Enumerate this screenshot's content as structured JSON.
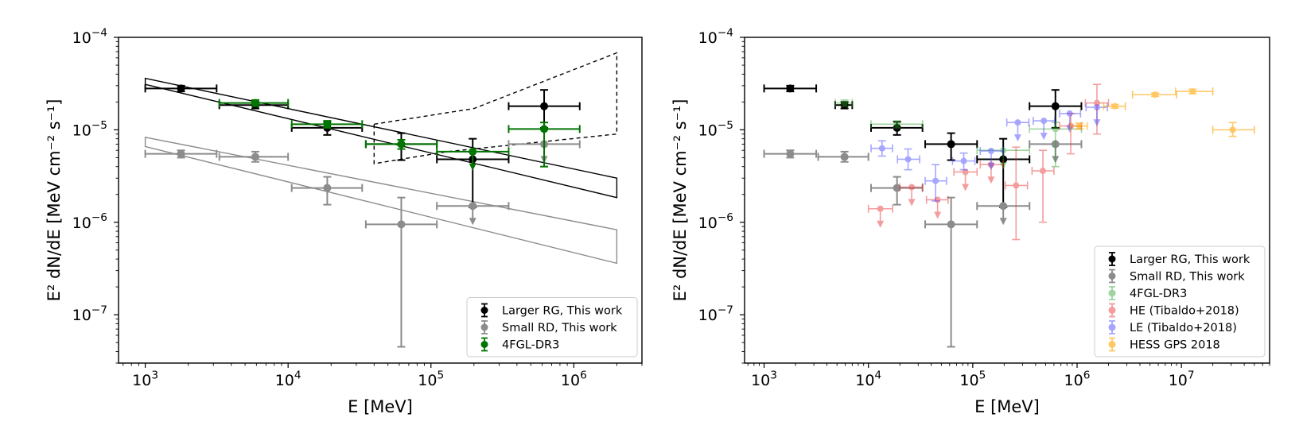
{
  "chart_data": [
    {
      "type": "scatter",
      "xscale": "log",
      "yscale": "log",
      "xlim": [
        650,
        3000000
      ],
      "ylim": [
        3e-08,
        0.0001
      ],
      "xlabel": "E [MeV]",
      "ylabel": "E² dN/dE [MeV cm⁻² s⁻¹]",
      "x_ticks": [
        "10^3",
        "10^4",
        "10^5",
        "10^6"
      ],
      "y_ticks": [
        "10^-4",
        "10^-5",
        "10^-6",
        "10^-7"
      ],
      "legend": {
        "placement": "lower-right",
        "entries": [
          {
            "label": "Larger RG, This work",
            "color": "#000000"
          },
          {
            "label": "Small RD, This work",
            "color": "#8c8c8c"
          },
          {
            "label": "4FGL-DR3",
            "color": "#007500"
          }
        ]
      },
      "series": [
        {
          "name": "Larger RG, This work",
          "color": "#000000",
          "alpha": 1,
          "points": [
            {
              "x": 1780,
              "y": 2.8e-05,
              "xlo": 1000,
              "xhi": 3160,
              "ylo": 2.6e-05,
              "yhi": 3e-05
            },
            {
              "x": 5900,
              "y": 1.85e-05,
              "xlo": 3300,
              "xhi": 10000,
              "ylo": 1.7e-05,
              "yhi": 2e-05
            },
            {
              "x": 18800,
              "y": 1.05e-05,
              "xlo": 10600,
              "xhi": 33000,
              "ylo": 8.8e-06,
              "yhi": 1.22e-05
            },
            {
              "x": 62000,
              "y": 7e-06,
              "xlo": 35000,
              "xhi": 110000,
              "ylo": 4.7e-06,
              "yhi": 9.2e-06
            },
            {
              "x": 196000,
              "y": 4.8e-06,
              "xlo": 110000,
              "xhi": 350000,
              "ylo": 1.45e-06,
              "yhi": 8e-06
            },
            {
              "x": 620000,
              "y": 1.8e-05,
              "xlo": 350000,
              "xhi": 1100000,
              "ylo": 1.05e-05,
              "yhi": 2.7e-05
            }
          ]
        },
        {
          "name": "Small RD, This work",
          "color": "#8c8c8c",
          "alpha": 1,
          "points": [
            {
              "x": 1780,
              "y": 5.5e-06,
              "xlo": 1000,
              "xhi": 3160,
              "ylo": 5e-06,
              "yhi": 6e-06
            },
            {
              "x": 5900,
              "y": 5.1e-06,
              "xlo": 3300,
              "xhi": 10000,
              "ylo": 4.5e-06,
              "yhi": 5.8e-06
            },
            {
              "x": 18800,
              "y": 2.35e-06,
              "xlo": 10600,
              "xhi": 33000,
              "ylo": 1.55e-06,
              "yhi": 3.1e-06
            },
            {
              "x": 62000,
              "y": 9.5e-07,
              "xlo": 35000,
              "xhi": 110000,
              "ylo": 4.5e-08,
              "yhi": 1.85e-06
            },
            {
              "x": 196000,
              "y": 1.5e-06,
              "xlo": 110000,
              "xhi": 350000,
              "ul": true
            },
            {
              "x": 620000,
              "y": 7e-06,
              "xlo": 350000,
              "xhi": 1100000,
              "ul": true
            }
          ]
        },
        {
          "name": "4FGL-DR3",
          "color": "#007500",
          "alpha": 1,
          "points": [
            {
              "x": 5900,
              "y": 1.95e-05,
              "xlo": 3300,
              "xhi": 10000,
              "ylo": 1.8e-05,
              "yhi": 2.1e-05
            },
            {
              "x": 18800,
              "y": 1.15e-05,
              "xlo": 10600,
              "xhi": 33000,
              "ylo": 1.05e-05,
              "yhi": 1.25e-05
            },
            {
              "x": 62000,
              "y": 7e-06,
              "xlo": 35000,
              "xhi": 110000,
              "ylo": 6.2e-06,
              "yhi": 7.8e-06
            },
            {
              "x": 196000,
              "y": 5.8e-06,
              "xlo": 110000,
              "xhi": 350000,
              "ul": true
            },
            {
              "x": 620000,
              "y": 1.02e-05,
              "xlo": 350000,
              "xhi": 1100000,
              "ylo": 4e-06,
              "yhi": 1.2e-05
            }
          ]
        }
      ],
      "bands": [
        {
          "color": "#000000",
          "dashed": false,
          "points": [
            [
              1000,
              3.6e-05
            ],
            [
              2000000,
              3e-06
            ],
            [
              2000000,
              1.85e-06
            ],
            [
              1000,
              3.1e-05
            ]
          ]
        },
        {
          "color": "#8c8c8c",
          "dashed": false,
          "points": [
            [
              1000,
              8.3e-06
            ],
            [
              2000000,
              8.3e-07
            ],
            [
              2000000,
              3.6e-07
            ],
            [
              1000,
              6.6e-06
            ]
          ]
        },
        {
          "color": "#000000",
          "dashed": true,
          "points": [
            [
              40000,
              1.15e-05
            ],
            [
              200000,
              1.7e-05
            ],
            [
              2000000,
              6.8e-05
            ],
            [
              2000000,
              9e-06
            ],
            [
              130000,
              5.8e-06
            ],
            [
              40000,
              4.3e-06
            ]
          ]
        }
      ]
    },
    {
      "type": "scatter",
      "xscale": "log",
      "yscale": "log",
      "xlim": [
        650,
        70000000
      ],
      "ylim": [
        3e-08,
        0.0001
      ],
      "xlabel": "E [MeV]",
      "ylabel": "E² dN/dE [MeV cm⁻² s⁻¹]",
      "x_ticks": [
        "10^3",
        "10^4",
        "10^5",
        "10^6",
        "10^7"
      ],
      "y_ticks": [
        "10^-4",
        "10^-5",
        "10^-6",
        "10^-7"
      ],
      "legend": {
        "placement": "lower-right",
        "entries": [
          {
            "label": "Larger RG, This work",
            "color": "#000000",
            "alpha": 1
          },
          {
            "label": "Small RD, This work",
            "color": "#8c8c8c",
            "alpha": 1
          },
          {
            "label": "4FGL-DR3",
            "color": "#2ca02c",
            "alpha": 0.45
          },
          {
            "label": "HE (Tibaldo+2018)",
            "color": "#e8282b",
            "alpha": 0.45
          },
          {
            "label": "LE (Tibaldo+2018)",
            "color": "#3b3bff",
            "alpha": 0.45
          },
          {
            "label": "HESS GPS 2018",
            "color": "#ffa500",
            "alpha": 0.6
          }
        ]
      },
      "series": [
        {
          "name": "Larger RG, This work",
          "color": "#000000",
          "alpha": 1,
          "points": [
            {
              "x": 1780,
              "y": 2.8e-05,
              "xlo": 1000,
              "xhi": 3160,
              "ylo": 2.6e-05,
              "yhi": 3e-05
            },
            {
              "x": 5900,
              "y": 1.85e-05,
              "xlo": 4800,
              "xhi": 7000,
              "ylo": 1.7e-05,
              "yhi": 2e-05
            },
            {
              "x": 18800,
              "y": 1.05e-05,
              "xlo": 10600,
              "xhi": 33000,
              "ylo": 8.8e-06,
              "yhi": 1.22e-05
            },
            {
              "x": 62000,
              "y": 7e-06,
              "xlo": 35000,
              "xhi": 110000,
              "ylo": 4.7e-06,
              "yhi": 9.2e-06
            },
            {
              "x": 196000,
              "y": 4.8e-06,
              "xlo": 110000,
              "xhi": 350000,
              "ylo": 1.45e-06,
              "yhi": 8e-06
            },
            {
              "x": 620000,
              "y": 1.8e-05,
              "xlo": 350000,
              "xhi": 1100000,
              "ylo": 1.05e-05,
              "yhi": 2.7e-05
            }
          ]
        },
        {
          "name": "Small RD, This work",
          "color": "#8c8c8c",
          "alpha": 1,
          "points": [
            {
              "x": 1780,
              "y": 5.5e-06,
              "xlo": 1000,
              "xhi": 3160,
              "ylo": 5e-06,
              "yhi": 6e-06
            },
            {
              "x": 5900,
              "y": 5.1e-06,
              "xlo": 3300,
              "xhi": 10000,
              "ylo": 4.5e-06,
              "yhi": 5.8e-06
            },
            {
              "x": 18800,
              "y": 2.35e-06,
              "xlo": 10600,
              "xhi": 33000,
              "ylo": 1.55e-06,
              "yhi": 3.1e-06
            },
            {
              "x": 62000,
              "y": 9.5e-07,
              "xlo": 35000,
              "xhi": 110000,
              "ylo": 4.5e-08,
              "yhi": 1.85e-06
            },
            {
              "x": 196000,
              "y": 1.5e-06,
              "xlo": 110000,
              "xhi": 350000,
              "ul": true
            },
            {
              "x": 620000,
              "y": 7e-06,
              "xlo": 350000,
              "xhi": 1100000,
              "ul": true
            }
          ]
        },
        {
          "name": "4FGL-DR3",
          "color": "#2ca02c",
          "alpha": 0.45,
          "points": [
            {
              "x": 5900,
              "y": 1.95e-05,
              "xlo": 4800,
              "xhi": 7000,
              "ylo": 1.8e-05,
              "yhi": 2.1e-05
            },
            {
              "x": 18800,
              "y": 1.15e-05,
              "xlo": 10600,
              "xhi": 33000,
              "ylo": 1.05e-05,
              "yhi": 1.25e-05
            },
            {
              "x": 196000,
              "y": 6e-06,
              "xlo": 110000,
              "xhi": 350000,
              "ul": true
            },
            {
              "x": 620000,
              "y": 1.02e-05,
              "xlo": 350000,
              "xhi": 1100000,
              "ylo": 4e-06,
              "yhi": 1.2e-05
            }
          ]
        },
        {
          "name": "HE (Tibaldo+2018)",
          "color": "#e8282b",
          "alpha": 0.45,
          "points": [
            {
              "x": 13000,
              "y": 1.4e-06,
              "xlo": 10000,
              "xhi": 17000,
              "ul": true
            },
            {
              "x": 26000,
              "y": 2.4e-06,
              "xlo": 20000,
              "xhi": 33000,
              "ul": true
            },
            {
              "x": 46000,
              "y": 1.75e-06,
              "xlo": 36000,
              "xhi": 58000,
              "ul": true
            },
            {
              "x": 85000,
              "y": 3.5e-06,
              "xlo": 66000,
              "xhi": 110000,
              "ul": true
            },
            {
              "x": 150000,
              "y": 4.2e-06,
              "xlo": 118000,
              "xhi": 195000,
              "ul": true
            },
            {
              "x": 260000,
              "y": 2.5e-06,
              "xlo": 205000,
              "xhi": 335000,
              "ylo": 6.5e-07,
              "yhi": 6.5e-06
            },
            {
              "x": 470000,
              "y": 3.6e-06,
              "xlo": 370000,
              "xhi": 600000,
              "ylo": 1e-06,
              "yhi": 6e-06
            },
            {
              "x": 870000,
              "y": 1.1e-05,
              "xlo": 680000,
              "xhi": 1100000,
              "ylo": 5.5e-06,
              "yhi": 1.5e-05
            },
            {
              "x": 1550000,
              "y": 1.95e-05,
              "xlo": 1200000,
              "xhi": 2000000,
              "ylo": 9e-06,
              "yhi": 3.1e-05
            }
          ]
        },
        {
          "name": "LE (Tibaldo+2018)",
          "color": "#3b3bff",
          "alpha": 0.45,
          "points": [
            {
              "x": 13500,
              "y": 6.3e-06,
              "xlo": 10600,
              "xhi": 17000,
              "ylo": 5.2e-06,
              "yhi": 7.6e-06
            },
            {
              "x": 24000,
              "y": 4.8e-06,
              "xlo": 19000,
              "xhi": 31000,
              "ylo": 3.7e-06,
              "yhi": 6.2e-06
            },
            {
              "x": 44000,
              "y": 2.8e-06,
              "xlo": 35000,
              "xhi": 56000,
              "ylo": 1.7e-06,
              "yhi": 4.2e-06
            },
            {
              "x": 82000,
              "y": 4.6e-06,
              "xlo": 64000,
              "xhi": 105000,
              "ylo": 3.7e-06,
              "yhi": 5.6e-06
            },
            {
              "x": 150000,
              "y": 5.9e-06,
              "xlo": 118000,
              "xhi": 195000,
              "ul": true
            },
            {
              "x": 270000,
              "y": 1.2e-05,
              "xlo": 212000,
              "xhi": 345000,
              "ul": true
            },
            {
              "x": 480000,
              "y": 1.25e-05,
              "xlo": 380000,
              "xhi": 610000,
              "ul": true
            },
            {
              "x": 850000,
              "y": 1.5e-05,
              "xlo": 680000,
              "xhi": 1080000,
              "ul": true
            },
            {
              "x": 1550000,
              "y": 1.75e-05,
              "xlo": 1220000,
              "xhi": 1950000,
              "ul": true
            }
          ]
        },
        {
          "name": "HESS GPS 2018",
          "color": "#ffa500",
          "alpha": 0.6,
          "points": [
            {
              "x": 1050000,
              "y": 1.1e-05,
              "xlo": 870000,
              "xhi": 1250000,
              "ylo": 1.02e-05,
              "yhi": 1.18e-05
            },
            {
              "x": 2300000,
              "y": 1.8e-05,
              "xlo": 1800000,
              "xhi": 2900000,
              "ylo": 1.72e-05,
              "yhi": 1.88e-05
            },
            {
              "x": 5600000,
              "y": 2.4e-05,
              "xlo": 3400000,
              "xhi": 9000000,
              "ylo": 2.3e-05,
              "yhi": 2.5e-05
            },
            {
              "x": 12800000,
              "y": 2.6e-05,
              "xlo": 8800000,
              "xhi": 20000000,
              "ylo": 2.45e-05,
              "yhi": 2.75e-05
            },
            {
              "x": 31000000,
              "y": 1e-05,
              "xlo": 20000000,
              "xhi": 50000000,
              "ylo": 8.5e-06,
              "yhi": 1.2e-05
            }
          ]
        }
      ],
      "bands": []
    }
  ]
}
